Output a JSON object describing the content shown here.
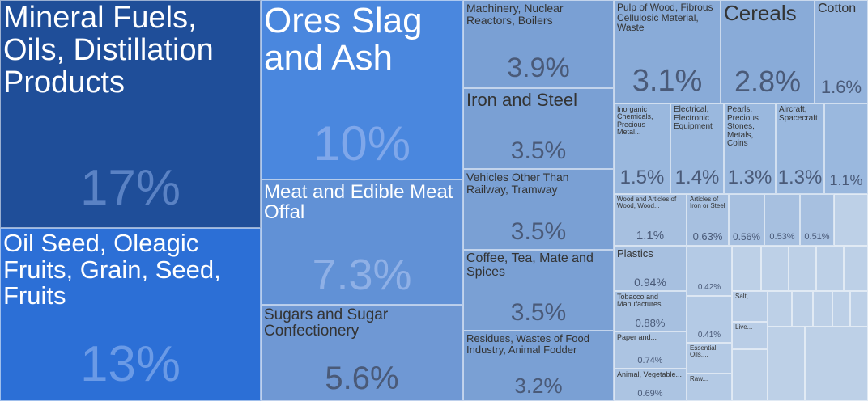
{
  "chart_data": {
    "type": "treemap",
    "cells": [
      {
        "name": "Mineral Fuels, Oils, Distillation Products",
        "value": "17%",
        "color": "#1f4e99"
      },
      {
        "name": "Oil Seed, Oleagic Fruits, Grain, Seed, Fruits",
        "value": "13%",
        "color": "#2c6fd6"
      },
      {
        "name": "Ores Slag and Ash",
        "value": "10%",
        "color": "#4a87de"
      },
      {
        "name": "Meat and Edible Meat Offal",
        "value": "7.3%",
        "color": "#6191d6"
      },
      {
        "name": "Sugars and Sugar Confectionery",
        "value": "5.6%",
        "color": "#6f98d4"
      },
      {
        "name": "Machinery, Nuclear Reactors, Boilers",
        "value": "3.9%",
        "color": "#7aa0d4"
      },
      {
        "name": "Iron and Steel",
        "value": "3.5%",
        "color": "#7aa0d4"
      },
      {
        "name": "Vehicles Other Than Railway, Tramway",
        "value": "3.5%",
        "color": "#7aa0d4"
      },
      {
        "name": "Coffee, Tea, Mate and Spices",
        "value": "3.5%",
        "color": "#7aa0d4"
      },
      {
        "name": "Residues, Wastes of Food Industry, Animal Fodder",
        "value": "3.2%",
        "color": "#7aa0d4"
      },
      {
        "name": "Pulp of Wood, Fibrous Cellulosic Material, Waste",
        "value": "3.1%",
        "color": "#89abd8"
      },
      {
        "name": "Cereals",
        "value": "2.8%",
        "color": "#89abd8"
      },
      {
        "name": "Cotton",
        "value": "1.6%",
        "color": "#94b3dc"
      },
      {
        "name": "Inorganic Chemicals, Precious Metal...",
        "value": "1.5%",
        "color": "#9ab8de"
      },
      {
        "name": "Electrical, Electronic Equipment",
        "value": "1.4%",
        "color": "#9ab8de"
      },
      {
        "name": "Pearls, Precious Stones, Metals, Coins",
        "value": "1.3%",
        "color": "#9ab8de"
      },
      {
        "name": "Aircraft, Spacecraft",
        "value": "1.3%",
        "color": "#9ab8de"
      },
      {
        "name": "",
        "value": "1.1%",
        "color": "#9ab8de"
      },
      {
        "name": "Wood and Articles of Wood, Wood...",
        "value": "1.1%",
        "color": "#a7c0e0"
      },
      {
        "name": "Articles of Iron or Steel",
        "value": "0.63%",
        "color": "#a7c0e0"
      },
      {
        "name": "",
        "value": "0.56%",
        "color": "#a7c0e0"
      },
      {
        "name": "",
        "value": "0.53%",
        "color": "#a7c0e0"
      },
      {
        "name": "",
        "value": "0.51%",
        "color": "#a7c0e0"
      },
      {
        "name": "Plastics",
        "value": "0.94%",
        "color": "#a7c0e0"
      },
      {
        "name": "Tobacco and Manufactures...",
        "value": "0.88%",
        "color": "#a7c0e0"
      },
      {
        "name": "Paper and...",
        "value": "0.74%",
        "color": "#acc4e2"
      },
      {
        "name": "Animal, Vegetable...",
        "value": "0.69%",
        "color": "#acc4e2"
      },
      {
        "name": "",
        "value": "0.42%",
        "color": "#b4cae5"
      },
      {
        "name": "",
        "value": "0.41%",
        "color": "#b4cae5"
      },
      {
        "name": "Essential Oils,...",
        "value": "",
        "color": "#b4cae5"
      },
      {
        "name": "Raw...",
        "value": "",
        "color": "#b4cae5"
      },
      {
        "name": "Salt,...",
        "value": "",
        "color": "#b9cde6"
      },
      {
        "name": "Live...",
        "value": "",
        "color": "#b9cde6"
      },
      {
        "name": "",
        "value": "",
        "color": "#bdd0e7"
      },
      {
        "name": "",
        "value": "",
        "color": "#bdd0e7"
      },
      {
        "name": "",
        "value": "",
        "color": "#bdd0e7"
      },
      {
        "name": "",
        "value": "",
        "color": "#bdd0e7"
      },
      {
        "name": "",
        "value": "",
        "color": "#bdd0e7"
      },
      {
        "name": "",
        "value": "",
        "color": "#bdd0e7"
      },
      {
        "name": "",
        "value": "",
        "color": "#bdd0e7"
      },
      {
        "name": "",
        "value": "",
        "color": "#bdd0e7"
      },
      {
        "name": "",
        "value": "",
        "color": "#bdd0e7"
      },
      {
        "name": "",
        "value": "",
        "color": "#bdd0e7"
      },
      {
        "name": "",
        "value": "",
        "color": "#bdd0e7"
      },
      {
        "name": "",
        "value": "",
        "color": "#bdd0e7"
      },
      {
        "name": "",
        "value": "",
        "color": "#bdd0e7"
      },
      {
        "name": "",
        "value": "",
        "color": "#bdd0e7"
      },
      {
        "name": "",
        "value": "",
        "color": "#bdd0e7"
      }
    ]
  }
}
